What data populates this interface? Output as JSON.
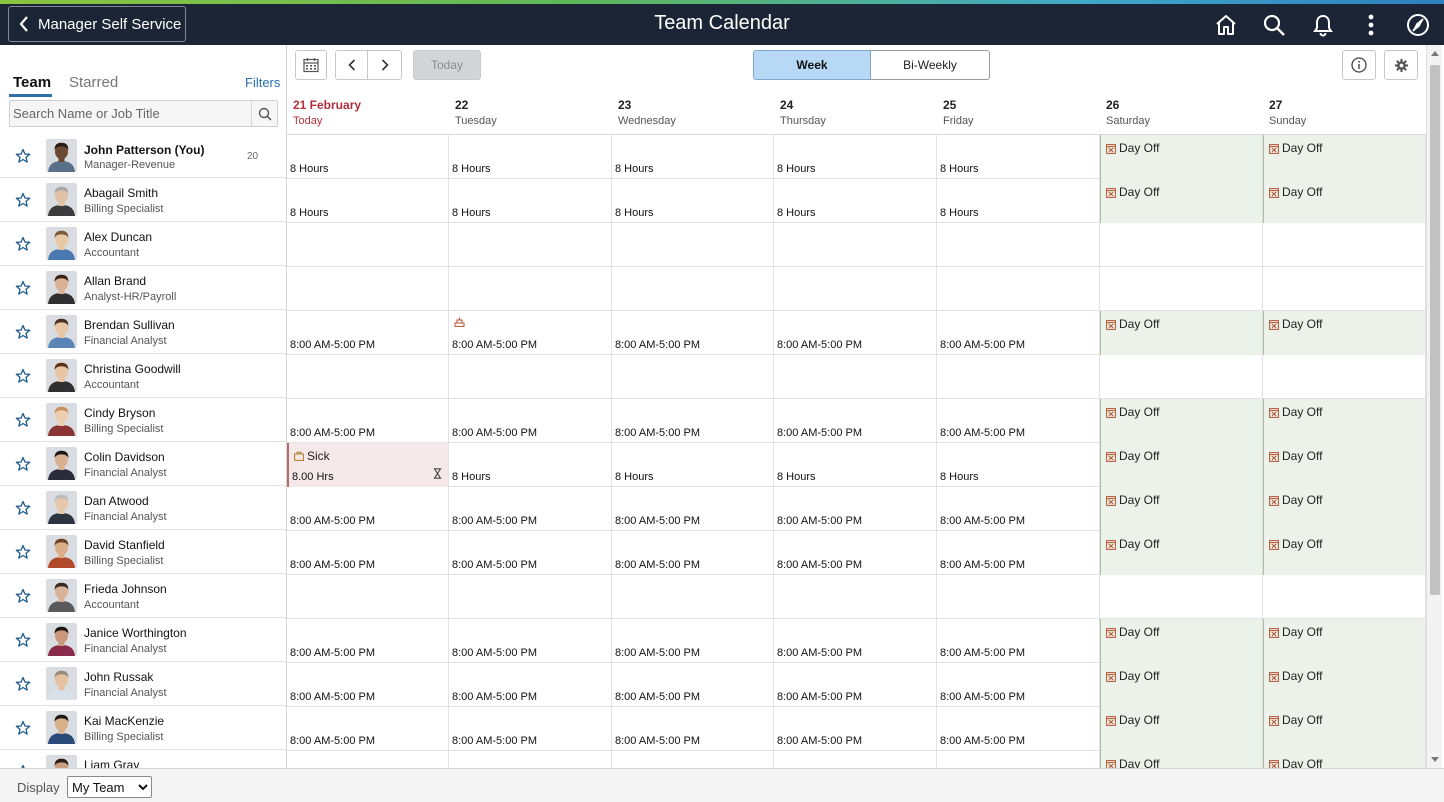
{
  "banner": {
    "back_label": "Manager Self Service",
    "title": "Team Calendar",
    "icons": [
      "home-icon",
      "search-icon",
      "bell-icon",
      "more-vertical-icon",
      "compass-icon"
    ]
  },
  "left": {
    "tabs": [
      "Team",
      "Starred"
    ],
    "active_tab": "Team",
    "filters_label": "Filters",
    "search_placeholder": "Search Name or Job Title"
  },
  "toolbar": {
    "today_label": "Today",
    "views": [
      "Week",
      "Bi-Weekly"
    ],
    "active_view": "Week"
  },
  "days": [
    {
      "num": "21 February",
      "name": "Today",
      "today": true
    },
    {
      "num": "22",
      "name": "Tuesday"
    },
    {
      "num": "23",
      "name": "Wednesday"
    },
    {
      "num": "24",
      "name": "Thursday"
    },
    {
      "num": "25",
      "name": "Friday"
    },
    {
      "num": "26",
      "name": "Saturday"
    },
    {
      "num": "27",
      "name": "Sunday"
    }
  ],
  "employees": [
    {
      "name": "John Patterson (You)",
      "title": "Manager-Revenue",
      "me": true,
      "badge": "20",
      "skin": "#6b4a34",
      "hair": "#2a1d14",
      "shirt": "#5a6f8a",
      "cells": [
        "8 Hours",
        "8 Hours",
        "8 Hours",
        "8 Hours",
        "8 Hours",
        "Day Off",
        "Day Off"
      ]
    },
    {
      "name": "Abagail Smith",
      "title": "Billing Specialist",
      "skin": "#e0c2a8",
      "hair": "#a8a8a8",
      "shirt": "#3b3b3b",
      "cells": [
        "8 Hours",
        "8 Hours",
        "8 Hours",
        "8 Hours",
        "8 Hours",
        "Day Off",
        "Day Off"
      ]
    },
    {
      "name": "Alex Duncan",
      "title": "Accountant",
      "skin": "#e8c9a6",
      "hair": "#7a5a3a",
      "shirt": "#4a78b0",
      "cells": [
        "",
        "",
        "",
        "",
        "",
        "",
        ""
      ]
    },
    {
      "name": "Allan Brand",
      "title": "Analyst-HR/Payroll",
      "skin": "#d9b394",
      "hair": "#3a2418",
      "shirt": "#2f2f2f",
      "cells": [
        "",
        "",
        "",
        "",
        "",
        "",
        ""
      ]
    },
    {
      "name": "Brendan Sullivan",
      "title": "Financial Analyst",
      "skin": "#e6c6a6",
      "hair": "#4a3020",
      "shirt": "#5a84b8",
      "holiday_day": 1,
      "cells": [
        "8:00 AM-5:00 PM",
        "8:00 AM-5:00 PM",
        "8:00 AM-5:00 PM",
        "8:00 AM-5:00 PM",
        "8:00 AM-5:00 PM",
        "Day Off",
        "Day Off"
      ]
    },
    {
      "name": "Christina Goodwill",
      "title": "Accountant",
      "skin": "#e8c4a2",
      "hair": "#5c3218",
      "shirt": "#303030",
      "cells": [
        "",
        "",
        "",
        "",
        "",
        "",
        ""
      ]
    },
    {
      "name": "Cindy Bryson",
      "title": "Billing Specialist",
      "skin": "#eccfb2",
      "hair": "#c4925a",
      "shirt": "#8a3434",
      "cells": [
        "8:00 AM-5:00 PM",
        "8:00 AM-5:00 PM",
        "8:00 AM-5:00 PM",
        "8:00 AM-5:00 PM",
        "8:00 AM-5:00 PM",
        "Day Off",
        "Day Off"
      ]
    },
    {
      "name": "Colin Davidson",
      "title": "Financial Analyst",
      "skin": "#d9b090",
      "hair": "#1e1a18",
      "shirt": "#2a2a3a",
      "cells": [
        "SICK",
        "8 Hours",
        "8 Hours",
        "8 Hours",
        "8 Hours",
        "Day Off",
        "Day Off"
      ],
      "sick_label": "Sick",
      "sick_hours": "8.00 Hrs"
    },
    {
      "name": "Dan Atwood",
      "title": "Financial Analyst",
      "skin": "#e6c8ac",
      "hair": "#bdbdbd",
      "shirt": "#2c3440",
      "cells": [
        "8:00 AM-5:00 PM",
        "8:00 AM-5:00 PM",
        "8:00 AM-5:00 PM",
        "8:00 AM-5:00 PM",
        "8:00 AM-5:00 PM",
        "Day Off",
        "Day Off"
      ]
    },
    {
      "name": "David Stanfield",
      "title": "Billing Specialist",
      "skin": "#dcae88",
      "hair": "#6a4426",
      "shirt": "#b04a2a",
      "cells": [
        "8:00 AM-5:00 PM",
        "8:00 AM-5:00 PM",
        "8:00 AM-5:00 PM",
        "8:00 AM-5:00 PM",
        "8:00 AM-5:00 PM",
        "Day Off",
        "Day Off"
      ]
    },
    {
      "name": "Frieda Johnson",
      "title": "Accountant",
      "skin": "#d8b39a",
      "hair": "#3a2a22",
      "shirt": "#5a5a5a",
      "cells": [
        "",
        "",
        "",
        "",
        "",
        "",
        ""
      ]
    },
    {
      "name": "Janice Worthington",
      "title": "Financial Analyst",
      "skin": "#c9987a",
      "hair": "#1d1410",
      "shirt": "#8a2a4a",
      "cells": [
        "8:00 AM-5:00 PM",
        "8:00 AM-5:00 PM",
        "8:00 AM-5:00 PM",
        "8:00 AM-5:00 PM",
        "8:00 AM-5:00 PM",
        "Day Off",
        "Day Off"
      ]
    },
    {
      "name": "John Russak",
      "title": "Financial Analyst",
      "skin": "#e4c2a2",
      "hair": "#9a8a7a",
      "shirt": "#d8e0ea",
      "cells": [
        "8:00 AM-5:00 PM",
        "8:00 AM-5:00 PM",
        "8:00 AM-5:00 PM",
        "8:00 AM-5:00 PM",
        "8:00 AM-5:00 PM",
        "Day Off",
        "Day Off"
      ]
    },
    {
      "name": "Kai MacKenzie",
      "title": "Billing Specialist",
      "skin": "#d8b08a",
      "hair": "#1c1814",
      "shirt": "#2a4a7a",
      "cells": [
        "8:00 AM-5:00 PM",
        "8:00 AM-5:00 PM",
        "8:00 AM-5:00 PM",
        "8:00 AM-5:00 PM",
        "8:00 AM-5:00 PM",
        "Day Off",
        "Day Off"
      ]
    },
    {
      "name": "Liam Gray",
      "title": "",
      "skin": "#c8a080",
      "hair": "#2a1e16",
      "shirt": "#333333",
      "cells": [
        "",
        "",
        "",
        "",
        "",
        "Day Off",
        "Day Off"
      ]
    }
  ],
  "footer": {
    "display_label": "Display",
    "display_value": "My Team"
  },
  "colors": {
    "banner_bg": "#1b2535",
    "today_red": "#b0313b",
    "link_blue": "#2a6eb7",
    "week_active_bg": "#b8d9f5",
    "dayoff_bg": "#ecf2e9",
    "sick_bg": "#f5e8e8"
  }
}
